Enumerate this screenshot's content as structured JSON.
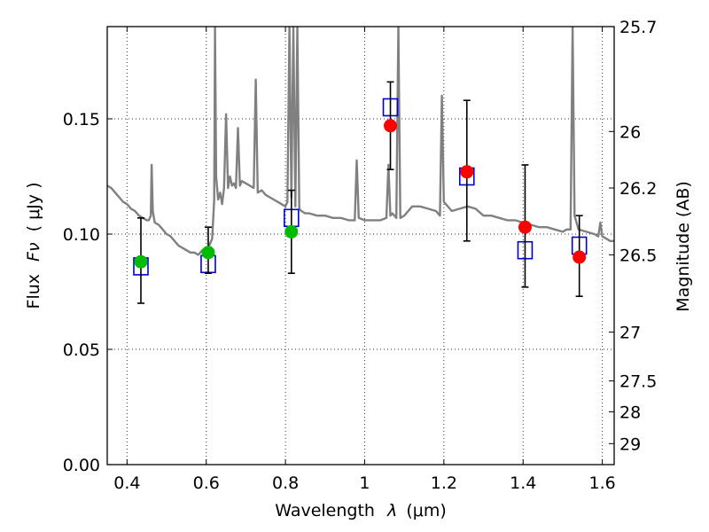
{
  "chart_data": {
    "type": "scatter",
    "title": "",
    "xlabel": "Wavelength",
    "xlabel_symbol": "λ",
    "xlabel_unit": "(μm)",
    "ylabel": "Flux",
    "ylabel_symbol": "Fν",
    "ylabel_unit": "( μJy )",
    "ylabel_right": "Magnitude (AB)",
    "xlim": [
      0.35,
      1.63
    ],
    "ylim": [
      0.0,
      0.19
    ],
    "grid": true,
    "x_ticks": [
      {
        "value": 0.4,
        "label": "0.4"
      },
      {
        "value": 0.6,
        "label": "0.6"
      },
      {
        "value": 0.8,
        "label": "0.8"
      },
      {
        "value": 1.0,
        "label": "1"
      },
      {
        "value": 1.2,
        "label": "1.2"
      },
      {
        "value": 1.4,
        "label": "1.4"
      },
      {
        "value": 1.6,
        "label": "1.6"
      }
    ],
    "y_ticks": [
      {
        "value": 0.0,
        "label": "0.00"
      },
      {
        "value": 0.05,
        "label": "0.05"
      },
      {
        "value": 0.1,
        "label": "0.10"
      },
      {
        "value": 0.15,
        "label": "0.15"
      }
    ],
    "mag_ticks": [
      {
        "flux": 0.19,
        "label": "25.7"
      },
      {
        "flux": 0.1445,
        "label": "26"
      },
      {
        "flux": 0.12,
        "label": "26.2"
      },
      {
        "flux": 0.091,
        "label": "26.5"
      },
      {
        "flux": 0.0575,
        "label": "27"
      },
      {
        "flux": 0.0363,
        "label": "27.5"
      },
      {
        "flux": 0.0229,
        "label": "28"
      },
      {
        "flux": 0.0091,
        "label": "29"
      }
    ],
    "series": [
      {
        "name": "model spectrum",
        "kind": "line",
        "color": "#808080",
        "x": [
          0.35,
          0.36,
          0.37,
          0.38,
          0.39,
          0.4,
          0.41,
          0.42,
          0.43,
          0.44,
          0.45,
          0.455,
          0.46,
          0.462,
          0.465,
          0.47,
          0.48,
          0.49,
          0.5,
          0.51,
          0.52,
          0.53,
          0.54,
          0.55,
          0.56,
          0.57,
          0.58,
          0.59,
          0.6,
          0.605,
          0.61,
          0.615,
          0.62,
          0.622,
          0.625,
          0.63,
          0.635,
          0.64,
          0.645,
          0.65,
          0.655,
          0.66,
          0.665,
          0.67,
          0.675,
          0.68,
          0.685,
          0.69,
          0.7,
          0.71,
          0.72,
          0.725,
          0.73,
          0.74,
          0.75,
          0.76,
          0.77,
          0.78,
          0.79,
          0.8,
          0.805,
          0.81,
          0.815,
          0.82,
          0.825,
          0.83,
          0.835,
          0.84,
          0.85,
          0.86,
          0.88,
          0.9,
          0.92,
          0.94,
          0.96,
          0.975,
          0.98,
          0.985,
          1.0,
          1.02,
          1.04,
          1.055,
          1.06,
          1.065,
          1.07,
          1.08,
          1.085,
          1.09,
          1.1,
          1.12,
          1.14,
          1.16,
          1.18,
          1.19,
          1.195,
          1.2,
          1.22,
          1.24,
          1.26,
          1.28,
          1.3,
          1.32,
          1.34,
          1.36,
          1.38,
          1.4,
          1.42,
          1.44,
          1.46,
          1.48,
          1.5,
          1.51,
          1.52,
          1.525,
          1.53,
          1.54,
          1.56,
          1.58,
          1.59,
          1.595,
          1.6,
          1.61,
          1.62,
          1.63
        ],
        "y": [
          0.121,
          0.12,
          0.118,
          0.116,
          0.114,
          0.113,
          0.111,
          0.11,
          0.108,
          0.107,
          0.106,
          0.106,
          0.108,
          0.13,
          0.11,
          0.105,
          0.104,
          0.102,
          0.1,
          0.099,
          0.097,
          0.095,
          0.094,
          0.093,
          0.092,
          0.092,
          0.091,
          0.093,
          0.092,
          0.094,
          0.096,
          0.098,
          0.115,
          0.19,
          0.125,
          0.115,
          0.118,
          0.113,
          0.12,
          0.152,
          0.12,
          0.125,
          0.121,
          0.122,
          0.12,
          0.146,
          0.121,
          0.123,
          0.122,
          0.121,
          0.12,
          0.167,
          0.118,
          0.119,
          0.117,
          0.116,
          0.115,
          0.114,
          0.113,
          0.112,
          0.114,
          0.19,
          0.116,
          0.19,
          0.112,
          0.19,
          0.111,
          0.11,
          0.109,
          0.109,
          0.108,
          0.108,
          0.107,
          0.107,
          0.106,
          0.106,
          0.132,
          0.107,
          0.106,
          0.106,
          0.106,
          0.107,
          0.13,
          0.108,
          0.109,
          0.107,
          0.19,
          0.107,
          0.108,
          0.112,
          0.112,
          0.111,
          0.11,
          0.108,
          0.16,
          0.114,
          0.11,
          0.111,
          0.112,
          0.111,
          0.108,
          0.108,
          0.107,
          0.106,
          0.106,
          0.105,
          0.104,
          0.103,
          0.103,
          0.102,
          0.101,
          0.102,
          0.102,
          0.19,
          0.108,
          0.102,
          0.101,
          0.1,
          0.099,
          0.105,
          0.099,
          0.098,
          0.097,
          0.097
        ]
      },
      {
        "name": "model photometry",
        "kind": "open-square",
        "color": "#0000cc",
        "x": [
          0.435,
          0.605,
          0.815,
          1.065,
          1.258,
          1.405,
          1.542
        ],
        "y": [
          0.086,
          0.087,
          0.107,
          0.155,
          0.125,
          0.093,
          0.095
        ]
      },
      {
        "name": "observed (green)",
        "kind": "filled-circle",
        "color": "#00bb00",
        "x": [
          0.435,
          0.605,
          0.815
        ],
        "y": [
          0.088,
          0.092,
          0.101
        ],
        "err_low": [
          0.07,
          0.083,
          0.083
        ],
        "err_high": [
          0.107,
          0.103,
          0.119
        ]
      },
      {
        "name": "observed (red)",
        "kind": "filled-circle",
        "color": "#ff0000",
        "x": [
          1.065,
          1.258,
          1.405,
          1.542
        ],
        "y": [
          0.147,
          0.127,
          0.103,
          0.09
        ],
        "err_low": [
          0.128,
          0.097,
          0.077,
          0.073
        ],
        "err_high": [
          0.166,
          0.158,
          0.13,
          0.108
        ]
      }
    ]
  }
}
